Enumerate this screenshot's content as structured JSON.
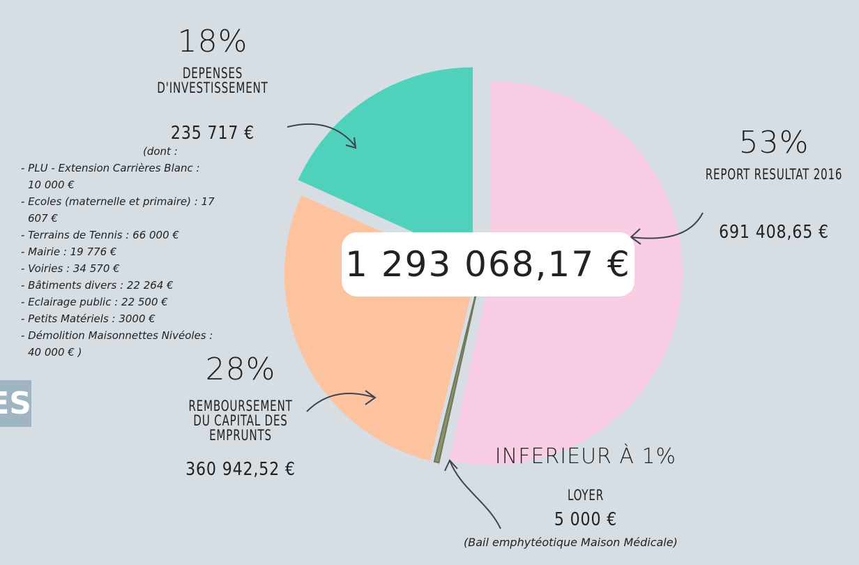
{
  "side_text": "ES",
  "chart_data": {
    "type": "pie",
    "categories": [
      "REPORT RESULTAT 2016",
      "LOYER",
      "REMBOURSEMENT DU CAPITAL DES EMPRUNTS",
      "DEPENSES D'INVESTISSEMENT"
    ],
    "values": [
      691408.65,
      5000,
      360942.52,
      235717
    ],
    "value_labels": [
      "691 408,65 €",
      "5 000 €",
      "360 942,52 €",
      "235 717 €"
    ],
    "percent_labels": [
      "53%",
      "INFERIEUR À 1%",
      "28%",
      "18%"
    ],
    "colors": [
      "#f9cde3",
      "#8a9270",
      "#fdc39f",
      "#4fd1bb"
    ],
    "total": 1293068.17,
    "total_label": "1 293 068,17 €",
    "investment_note": {
      "intro": "(dont :",
      "items": [
        "- PLU - Extension Carrières Blanc : 10 000 €",
        "- Ecoles (maternelle et primaire) : 17 607 €",
        "- Terrains de Tennis : 66 000 €",
        "- Mairie : 19 776 €",
        "- Voiries : 34 570 €",
        "- Bâtiments divers : 22 264 €",
        "- Eclairage public : 22 500 €",
        "- Petits Matériels : 3000 €",
        "- Démolition Maisonnettes Nivéoles : 40 000 € )"
      ]
    },
    "loyer_note": "(Bail emphytéotique Maison Médicale)"
  }
}
